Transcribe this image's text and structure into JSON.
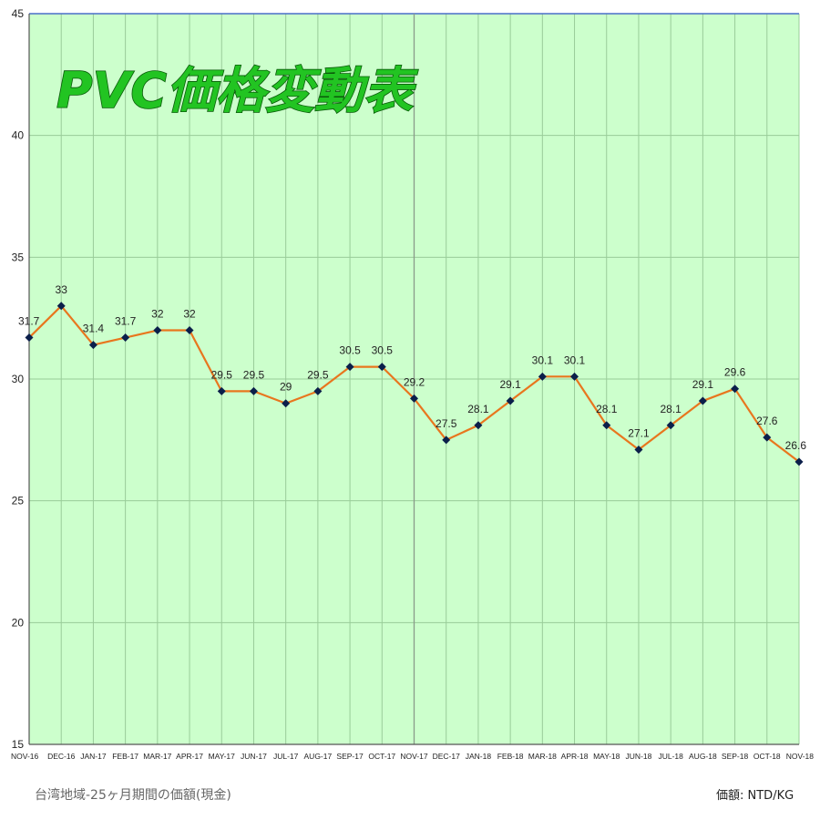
{
  "footer": {
    "note": "台湾地域-25ヶ月期間の価額(現金)",
    "unit": "価額: NTD/KG"
  },
  "chart_data": {
    "type": "line",
    "title": "PVC価格変動表",
    "categories": [
      "NOV-16",
      "DEC-16",
      "JAN-17",
      "FEB-17",
      "MAR-17",
      "APR-17",
      "MAY-17",
      "JUN-17",
      "JUL-17",
      "AUG-17",
      "SEP-17",
      "OCT-17",
      "NOV-17",
      "DEC-17",
      "JAN-18",
      "FEB-18",
      "MAR-18",
      "APR-18",
      "MAY-18",
      "JUN-18",
      "JUL-18",
      "AUG-18",
      "SEP-18",
      "OCT-18",
      "NOV-18"
    ],
    "values": [
      31.7,
      33,
      31.4,
      31.7,
      32,
      32,
      29.5,
      29.5,
      29,
      29.5,
      30.5,
      30.5,
      29.2,
      27.5,
      28.1,
      29.1,
      30.1,
      30.1,
      28.1,
      27.1,
      28.1,
      29.1,
      29.6,
      27.6,
      26.6
    ],
    "data_labels": [
      "31.7",
      "33",
      "31.4",
      "31.7",
      "32",
      "32",
      "29.5",
      "29.5",
      "29",
      "29.5",
      "30.5",
      "30.5",
      "29.2",
      "27.5",
      "28.1",
      "29.1",
      "30.1",
      "30.1",
      "28.1",
      "27.1",
      "28.1",
      "29.1",
      "29.6",
      "27.6",
      "26.6"
    ],
    "ylim": [
      15,
      45
    ],
    "yticks": [
      "15",
      "20",
      "25",
      "30",
      "35",
      "40",
      "45"
    ],
    "grid": true,
    "colors": {
      "plot_bg": "#ccffcc",
      "grid": "#99cc99",
      "line": "#e8761e",
      "marker": "#0b1f4a",
      "title_fill": "#22c422"
    }
  }
}
